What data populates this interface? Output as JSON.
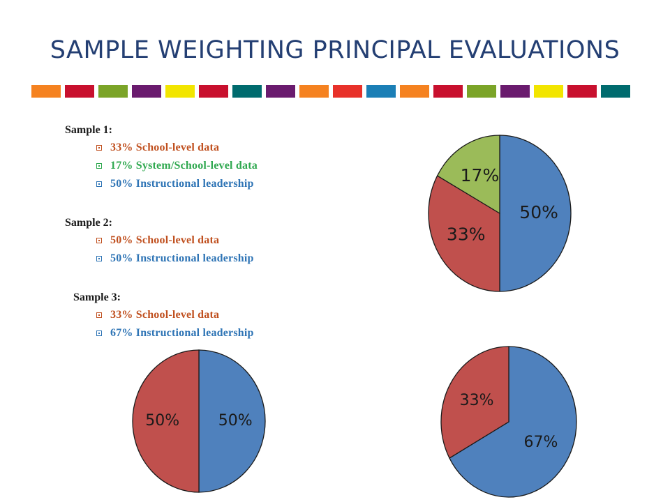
{
  "title": "SAMPLE WEIGHTING PRINCIPAL EVALUATIONS",
  "colors": {
    "school": "#c0504d",
    "system": "#9bbb59",
    "instructional": "#4f81bd",
    "text_school": "#c0501f",
    "text_system": "#2fa84f",
    "text_instructional": "#2e74b5"
  },
  "stripe_colors": [
    "#f58220",
    "#c8102e",
    "#7ba428",
    "#6a1b6e",
    "#f2e500",
    "#c8102e",
    "#006b6e",
    "#6a1b6e",
    "#f58220",
    "#e8312a",
    "#1b7fb6",
    "#f58220",
    "#c8102e",
    "#7ba428",
    "#6a1b6e",
    "#f2e500",
    "#c8102e",
    "#006b6e"
  ],
  "samples": [
    {
      "label": "Sample 1:",
      "items": [
        {
          "text": "33% School-level data",
          "kind": "school"
        },
        {
          "text": "17% System/School-level data",
          "kind": "system"
        },
        {
          "text": "50% Instructional leadership",
          "kind": "instructional"
        }
      ]
    },
    {
      "label": "Sample 2:",
      "items": [
        {
          "text": "50% School-level data",
          "kind": "school"
        },
        {
          "text": "50% Instructional leadership",
          "kind": "instructional"
        }
      ]
    },
    {
      "label": "Sample 3:",
      "items": [
        {
          "text": "33% School-level data",
          "kind": "school"
        },
        {
          "text": "67% Instructional leadership",
          "kind": "instructional"
        }
      ]
    }
  ],
  "chart_data": [
    {
      "type": "pie",
      "slices": [
        {
          "label": "50%",
          "value": 50,
          "color": "#4f81bd"
        },
        {
          "label": "33%",
          "value": 33,
          "color": "#c0504d"
        },
        {
          "label": "17%",
          "value": 17,
          "color": "#9bbb59"
        }
      ]
    },
    {
      "type": "pie",
      "slices": [
        {
          "label": "50%",
          "value": 50,
          "color": "#4f81bd"
        },
        {
          "label": "50%",
          "value": 50,
          "color": "#c0504d"
        }
      ]
    },
    {
      "type": "pie",
      "slices": [
        {
          "label": "67%",
          "value": 67,
          "color": "#4f81bd"
        },
        {
          "label": "33%",
          "value": 33,
          "color": "#c0504d"
        }
      ]
    }
  ]
}
